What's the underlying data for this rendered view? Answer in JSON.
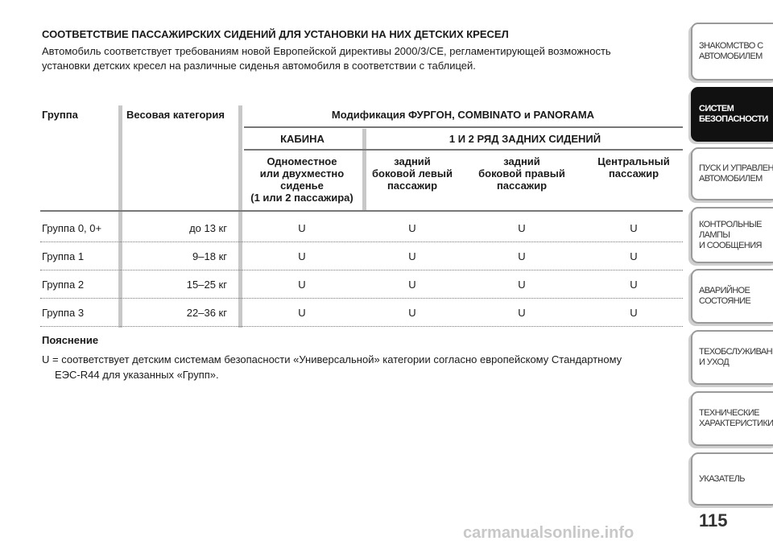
{
  "header": {
    "title": "СООТВЕТСТВИЕ ПАССАЖИРСКИХ СИДЕНИЙ ДЛЯ УСТАНОВКИ НА НИХ ДЕТСКИХ КРЕСЕЛ",
    "intro": [
      "Автомобиль соответствует требованиям новой Европейской директивы 2000/3/CE, регламентирующей возможность",
      "установки детских кресел на различные сиденья автомобиля в соответствии с таблицей."
    ]
  },
  "table": {
    "group": "Группа",
    "weight": "Весовая категория",
    "modification": "Модификация ФУРГОН, COMBINATO и PANORAMA",
    "cabin": "КАБИНА",
    "rear": "1 И 2 РЯД ЗАДНИХ СИДЕНИЙ",
    "subheaders": [
      [
        "Одноместное",
        "или двухместно",
        "сиденье",
        "(1 или 2 пассажира)"
      ],
      [
        "задний",
        "боковой левый",
        "пассажир"
      ],
      [
        "задний",
        "боковой правый",
        "пассажир"
      ],
      [
        "Центральный",
        "пассажир"
      ]
    ],
    "rows": [
      [
        "Группа 0, 0+",
        "до 13 кг",
        "U",
        "U",
        "U",
        "U"
      ],
      [
        "Группа 1",
        "9–18 кг",
        "U",
        "U",
        "U",
        "U"
      ],
      [
        "Группа 2",
        "15–25 кг",
        "U",
        "U",
        "U",
        "U"
      ],
      [
        "Группа 3",
        "22–36 кг",
        "U",
        "U",
        "U",
        "U"
      ]
    ]
  },
  "notes": {
    "title": "Пояснение",
    "text": [
      "U = соответствует детским системам безопасности «Универсальной» категории согласно европейскому Стандартному",
      "ЕЭС-R44 для указанных «Групп»."
    ]
  },
  "sidebar": {
    "tabs": [
      [
        "ЗНАКОМСТВО С",
        "АВТОМОБИЛЕМ"
      ],
      [
        "СИСТЕМ",
        "БЕЗОПАСНОСТИ"
      ],
      [
        "ПУСК И УПРАВЛЕНИЕ",
        "АВТОМОБИЛЕМ"
      ],
      [
        "КОНТРОЛЬНЫЕ",
        "ЛАМПЫ",
        "И СООБЩЕНИЯ"
      ],
      [
        "АВАРИЙНОЕ",
        "СОСТОЯНИЕ"
      ],
      [
        "ТЕХОБСЛУЖИВАНИЕ",
        "И УХОД"
      ],
      [
        "ТЕХНИЧЕСКИЕ",
        "ХАРАКТЕРИСТИКИ"
      ],
      [
        "УКАЗАТЕЛЬ"
      ]
    ],
    "active": 1
  },
  "page_number": "115",
  "watermark": "carmanualsonline.info"
}
